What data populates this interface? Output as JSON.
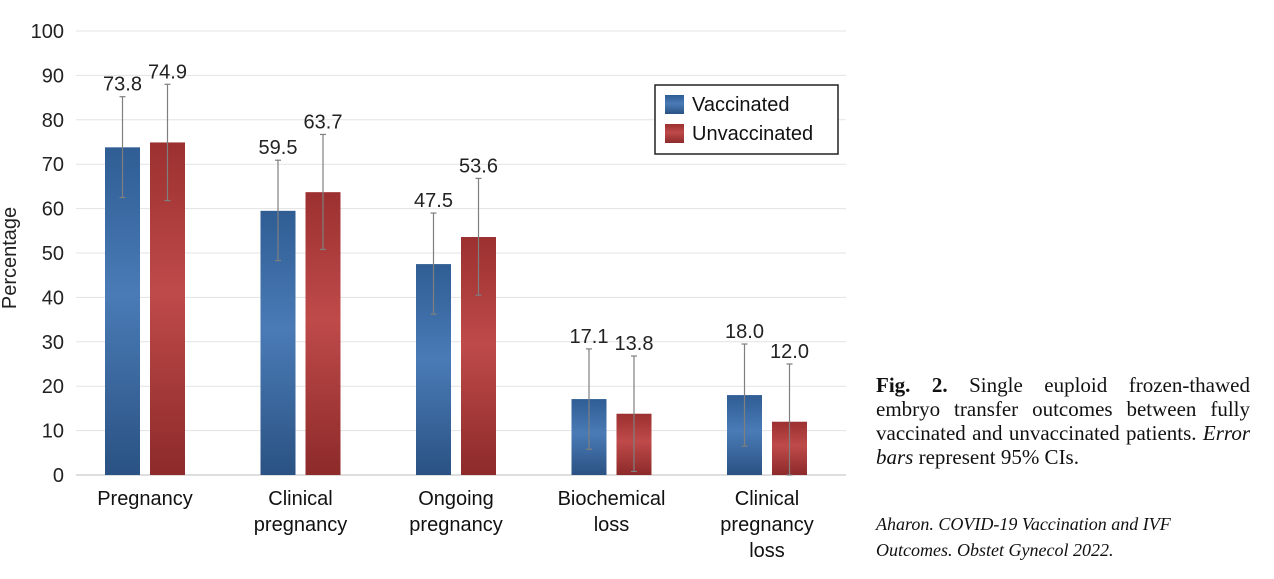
{
  "chart_data": {
    "type": "bar",
    "categories": [
      [
        "Pregnancy"
      ],
      [
        "Clinical",
        "pregnancy"
      ],
      [
        "Ongoing",
        "pregnancy"
      ],
      [
        "Biochemical",
        "loss"
      ],
      [
        "Clinical",
        "pregnancy",
        "loss"
      ]
    ],
    "series": [
      {
        "name": "Vaccinated",
        "color": "#3a6aa3",
        "values": [
          73.8,
          59.5,
          47.5,
          17.1,
          18.0
        ],
        "labels": [
          "73.8",
          "59.5",
          "47.5",
          "17.1",
          "18.0"
        ],
        "ci_low": [
          62.5,
          48.3,
          36.2,
          5.8,
          6.5
        ],
        "ci_high": [
          85.2,
          70.9,
          59.0,
          28.4,
          29.5
        ]
      },
      {
        "name": "Unvaccinated",
        "color": "#ab3b3b",
        "values": [
          74.9,
          63.7,
          53.6,
          13.8,
          12.0
        ],
        "labels": [
          "74.9",
          "63.7",
          "53.6",
          "13.8",
          "12.0"
        ],
        "ci_low": [
          61.8,
          50.8,
          40.5,
          0.8,
          0.0
        ],
        "ci_high": [
          88.0,
          76.7,
          66.8,
          26.8,
          25.0
        ]
      }
    ],
    "ylabel": "Percentage",
    "ylim": [
      0,
      100
    ],
    "yticks": [
      0,
      10,
      20,
      30,
      40,
      50,
      60,
      70,
      80,
      90,
      100
    ],
    "grid": true,
    "legend_position": "top-right"
  },
  "caption": {
    "fig_label": "Fig. 2.",
    "text_part1": " Single euploid frozen-thawed embryo transfer outcomes between fully vaccinated and unvaccinated patients. ",
    "emphasis": "Error bars",
    "text_part2": " represent 95% CIs."
  },
  "citation": {
    "line1": "Aharon. COVID-19 Vaccination and IVF",
    "line2": "Outcomes. Obstet Gynecol 2022."
  }
}
